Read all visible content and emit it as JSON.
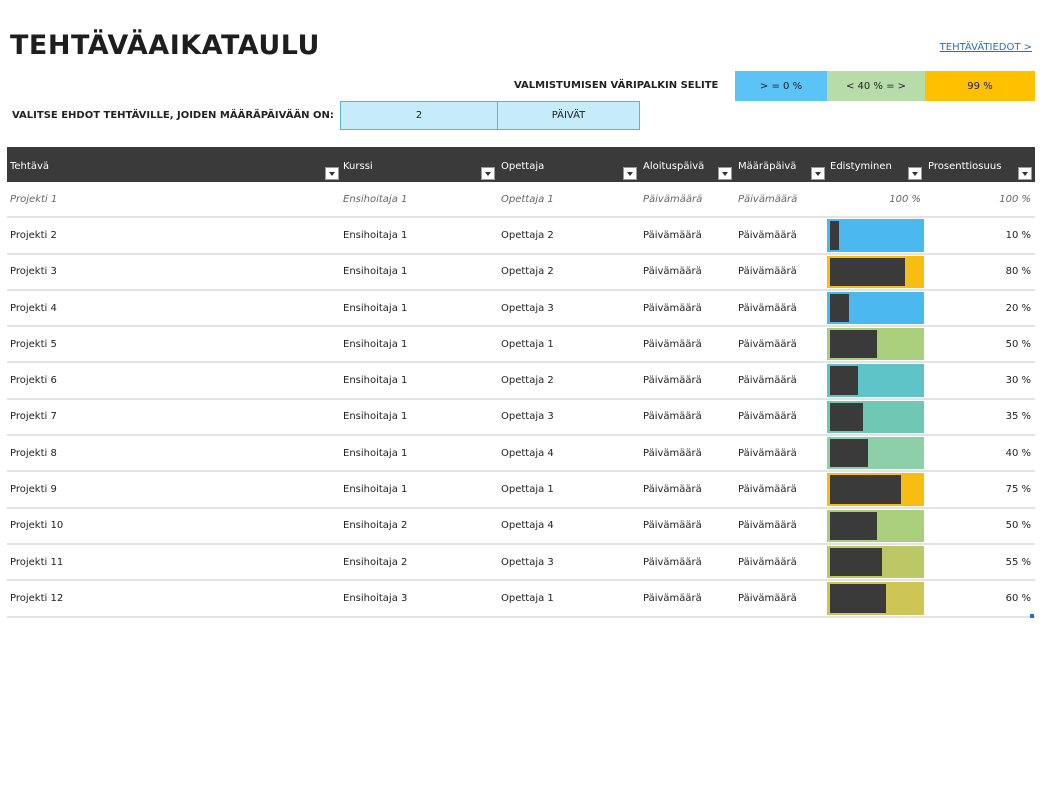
{
  "header": {
    "title": "TEHTÄVÄAIKATAULU",
    "link": "TEHTÄVÄTIEDOT >"
  },
  "legend": {
    "label": "VALMISTUMISEN VÄRIPALKIN SELITE",
    "items": [
      {
        "text": "> = 0 %",
        "color": "#5bc3f5"
      },
      {
        "text": "< 40 % = >",
        "color": "#b7dcaa"
      },
      {
        "text": "99 %",
        "color": "#ffc000"
      }
    ]
  },
  "filter": {
    "label": "VALITSE EHDOT TEHTÄVILLE, JOIDEN MÄÄRÄPÄIVÄÄN ON:",
    "value": "2",
    "unit": "PÄIVÄT"
  },
  "columns": [
    "Tehtävä",
    "Kurssi",
    "Opettaja",
    "Aloituspäivä",
    "Määräpäivä",
    "Edistyminen",
    "Prosenttiosuus"
  ],
  "rows": [
    {
      "task": "Projekti 1",
      "course": "Ensihoitaja 1",
      "teacher": "Opettaja 1",
      "start": "Päivämäärä",
      "due": "Päivämäärä",
      "progress_text": "100 %",
      "pct_text": "100 %",
      "progress": 1.0,
      "sample": true
    },
    {
      "task": "Projekti 2",
      "course": "Ensihoitaja 1",
      "teacher": "Opettaja 2",
      "start": "Päivämäärä",
      "due": "Päivämäärä",
      "pct_text": "10 %",
      "progress": 0.1,
      "bar_color": "#4cb8f0"
    },
    {
      "task": "Projekti 3",
      "course": "Ensihoitaja 1",
      "teacher": "Opettaja 2",
      "start": "Päivämäärä",
      "due": "Päivämäärä",
      "pct_text": "80 %",
      "progress": 0.8,
      "bar_color": "#f8bd12"
    },
    {
      "task": "Projekti 4",
      "course": "Ensihoitaja 1",
      "teacher": "Opettaja 3",
      "start": "Päivämäärä",
      "due": "Päivämäärä",
      "pct_text": "20 %",
      "progress": 0.2,
      "bar_color": "#4cb8f0"
    },
    {
      "task": "Projekti 5",
      "course": "Ensihoitaja 1",
      "teacher": "Opettaja 1",
      "start": "Päivämäärä",
      "due": "Päivämäärä",
      "pct_text": "50 %",
      "progress": 0.5,
      "bar_color": "#a9cf7c"
    },
    {
      "task": "Projekti 6",
      "course": "Ensihoitaja 1",
      "teacher": "Opettaja 2",
      "start": "Päivämäärä",
      "due": "Päivämäärä",
      "pct_text": "30 %",
      "progress": 0.3,
      "bar_color": "#5ec4c8"
    },
    {
      "task": "Projekti 7",
      "course": "Ensihoitaja 1",
      "teacher": "Opettaja 3",
      "start": "Päivämäärä",
      "due": "Päivämäärä",
      "pct_text": "35 %",
      "progress": 0.35,
      "bar_color": "#6ec8b4"
    },
    {
      "task": "Projekti 8",
      "course": "Ensihoitaja 1",
      "teacher": "Opettaja 4",
      "start": "Päivämäärä",
      "due": "Päivämäärä",
      "pct_text": "40 %",
      "progress": 0.4,
      "bar_color": "#8ccfa8"
    },
    {
      "task": "Projekti 9",
      "course": "Ensihoitaja 1",
      "teacher": "Opettaja 1",
      "start": "Päivämäärä",
      "due": "Päivämäärä",
      "pct_text": "75 %",
      "progress": 0.75,
      "bar_color": "#f8bd12"
    },
    {
      "task": "Projekti 10",
      "course": "Ensihoitaja 2",
      "teacher": "Opettaja 4",
      "start": "Päivämäärä",
      "due": "Päivämäärä",
      "pct_text": "50 %",
      "progress": 0.5,
      "bar_color": "#a9cf7c"
    },
    {
      "task": "Projekti 11",
      "course": "Ensihoitaja 2",
      "teacher": "Opettaja 3",
      "start": "Päivämäärä",
      "due": "Päivämäärä",
      "pct_text": "55 %",
      "progress": 0.55,
      "bar_color": "#bcc866"
    },
    {
      "task": "Projekti 12",
      "course": "Ensihoitaja 3",
      "teacher": "Opettaja 1",
      "start": "Päivämäärä",
      "due": "Päivämäärä",
      "pct_text": "60 %",
      "progress": 0.6,
      "bar_color": "#cdc655"
    }
  ]
}
